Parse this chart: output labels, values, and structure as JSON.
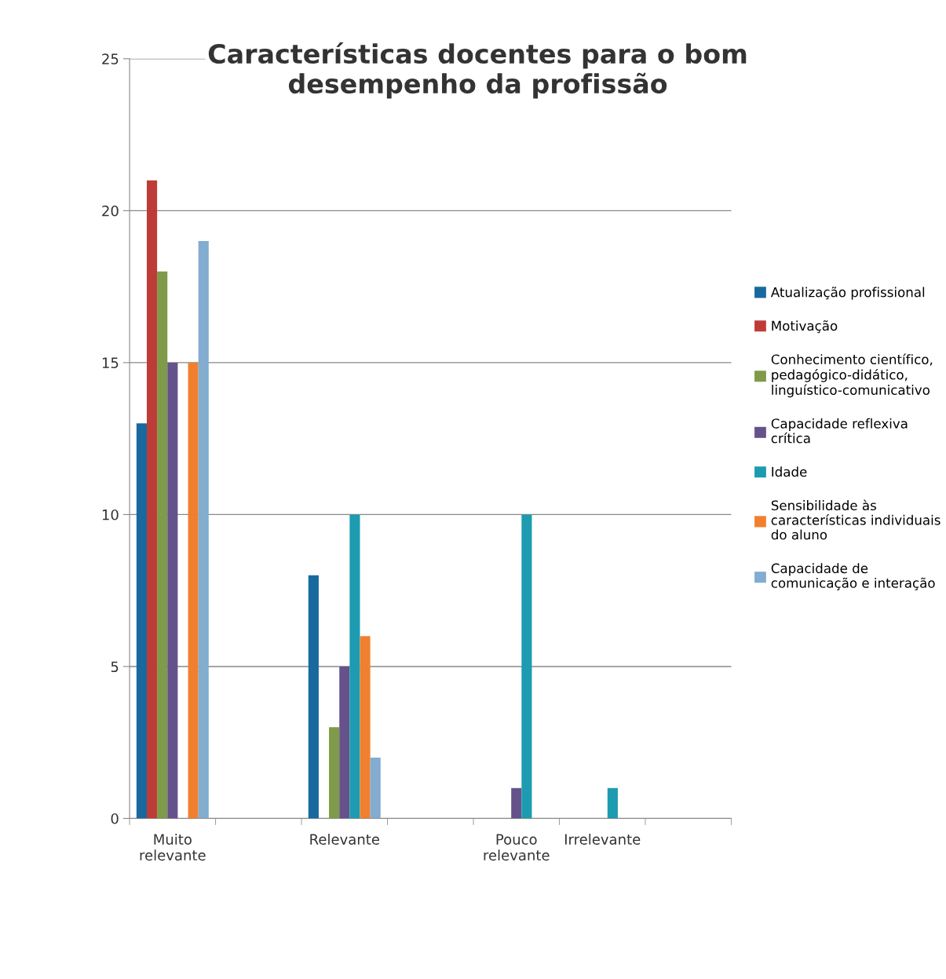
{
  "chart_data": {
    "type": "bar",
    "title": "Características docentes para o bom\ndesempenho da profissão",
    "categories": [
      "Muito\nrelevante",
      null,
      "Relevante",
      null,
      "Pouco\nrelevante",
      "Irrelevante",
      null
    ],
    "series": [
      {
        "name": "Atualização profissional",
        "color": "#17699e",
        "values": [
          13,
          null,
          8,
          null,
          null,
          null,
          null
        ]
      },
      {
        "name": "Motivação",
        "color": "#be3c37",
        "values": [
          21,
          null,
          null,
          null,
          null,
          null,
          null
        ]
      },
      {
        "name": "Conhecimento científico,\npedagógico-didático,\nlinguístico-comunicativo",
        "color": "#7f9a48",
        "values": [
          18,
          null,
          3,
          null,
          null,
          null,
          null
        ]
      },
      {
        "name": "Capacidade reflexiva\ncrítica",
        "color": "#65528a",
        "values": [
          15,
          null,
          5,
          null,
          1,
          null,
          null
        ]
      },
      {
        "name": "Idade",
        "color": "#1d9bb0",
        "values": [
          null,
          null,
          10,
          null,
          10,
          1,
          null
        ]
      },
      {
        "name": "Sensibilidade às\ncaracterísticas individuais\ndo aluno",
        "color": "#f08030",
        "values": [
          15,
          null,
          6,
          null,
          null,
          null,
          null
        ]
      },
      {
        "name": "Capacidade de\ncomunicação e interação",
        "color": "#82acd0",
        "values": [
          19,
          null,
          2,
          null,
          null,
          null,
          null
        ]
      }
    ],
    "ylim": [
      0,
      25
    ],
    "yticks": [
      0,
      5,
      10,
      15,
      20,
      25
    ],
    "grid": "y",
    "legend": "right"
  }
}
